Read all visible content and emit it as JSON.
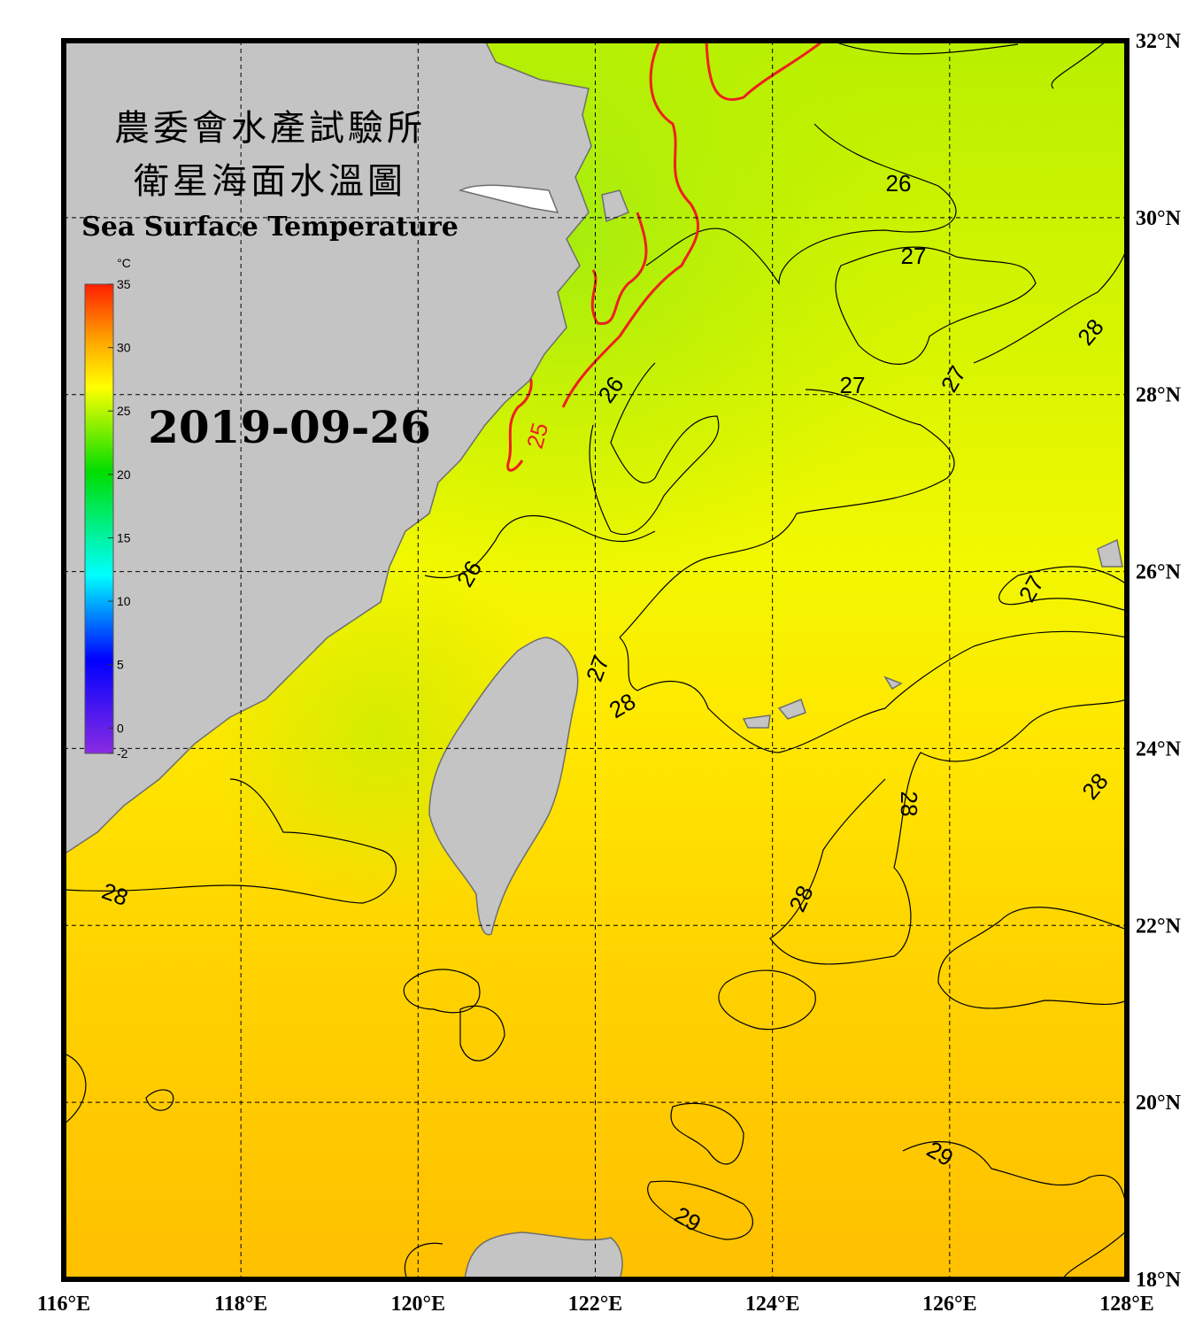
{
  "map_data": {
    "title_zh": [
      "農委會水產試驗所",
      "衛星海面水溫圖"
    ],
    "title_en": "Sea Surface Temperature",
    "date": "2019-09-26",
    "lon_ticks": [
      {
        "value": 116,
        "label": "116°E"
      },
      {
        "value": 118,
        "label": "118°E"
      },
      {
        "value": 120,
        "label": "120°E"
      },
      {
        "value": 122,
        "label": "122°E"
      },
      {
        "value": 124,
        "label": "124°E"
      },
      {
        "value": 126,
        "label": "126°E"
      },
      {
        "value": 128,
        "label": "128°E"
      }
    ],
    "lat_ticks": [
      {
        "value": 18,
        "label": "18°N"
      },
      {
        "value": 20,
        "label": "20°N"
      },
      {
        "value": 22,
        "label": "22°N"
      },
      {
        "value": 24,
        "label": "24°N"
      },
      {
        "value": 26,
        "label": "26°N"
      },
      {
        "value": 28,
        "label": "28°N"
      },
      {
        "value": 30,
        "label": "30°N"
      },
      {
        "value": 32,
        "label": "32°N"
      }
    ],
    "lonlim": [
      116,
      128
    ],
    "latlim": [
      18,
      32
    ],
    "colorbar": {
      "unit": "°C",
      "range": [
        -2,
        35
      ],
      "ticks": [
        35,
        30,
        25,
        20,
        15,
        10,
        5,
        0,
        -2
      ]
    },
    "contour_labels": [
      26,
      27,
      28,
      27,
      27,
      26,
      25,
      26,
      27,
      27,
      28,
      28,
      28,
      28,
      28,
      29,
      29
    ]
  }
}
